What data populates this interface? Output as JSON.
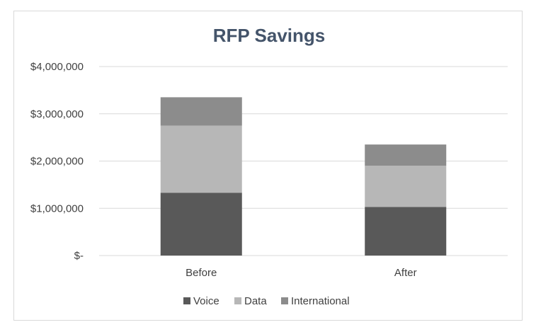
{
  "chart_data": {
    "type": "bar",
    "stacked": true,
    "title": "RFP Savings",
    "categories": [
      "Before",
      "After"
    ],
    "series": [
      {
        "name": "Voice",
        "values": [
          1330000,
          1030000
        ],
        "color": "#595959"
      },
      {
        "name": "Data",
        "values": [
          1420000,
          870000
        ],
        "color": "#b7b7b7"
      },
      {
        "name": "International",
        "values": [
          600000,
          450000
        ],
        "color": "#8c8c8c"
      }
    ],
    "ylim": [
      0,
      4000000
    ],
    "yticks": [
      0,
      1000000,
      2000000,
      3000000,
      4000000
    ],
    "ytick_labels": [
      "$-",
      "$1,000,000",
      "$2,000,000",
      "$3,000,000",
      "$4,000,000"
    ],
    "grid": true,
    "legend_position": "bottom",
    "xlabel": "",
    "ylabel": ""
  }
}
